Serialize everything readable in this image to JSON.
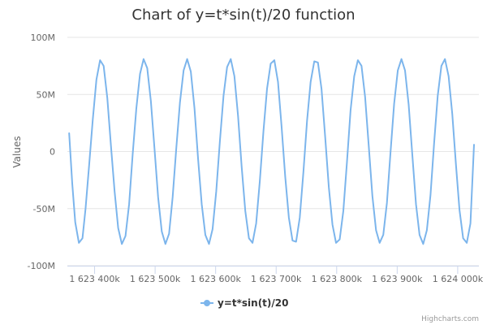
{
  "chart_data": {
    "type": "line",
    "title": "Chart of y=t*sin(t)/20 function",
    "xlabel": "",
    "ylabel": "Values",
    "x_ticks": [
      {
        "value": 1623400000,
        "label": "1 623 400k"
      },
      {
        "value": 1623500000,
        "label": "1 623 500k"
      },
      {
        "value": 1623600000,
        "label": "1 623 600k"
      },
      {
        "value": 1623700000,
        "label": "1 623 700k"
      },
      {
        "value": 1623800000,
        "label": "1 623 800k"
      },
      {
        "value": 1623900000,
        "label": "1 623 900k"
      },
      {
        "value": 1624000000,
        "label": "1 624 000k"
      }
    ],
    "y_ticks": [
      {
        "value": 100000000,
        "label": "100M"
      },
      {
        "value": 50000000,
        "label": "50M"
      },
      {
        "value": 0,
        "label": "0"
      },
      {
        "value": -50000000,
        "label": "-50M"
      },
      {
        "value": -100000000,
        "label": "-100M"
      }
    ],
    "xlim": [
      1623355000,
      1624035000
    ],
    "ylim": [
      -100000000,
      100000000
    ],
    "grid": true,
    "legend_position": "bottom-center",
    "series": [
      {
        "name": "y=t*sin(t)/20",
        "color": "#7cb5ec",
        "x": [
          1623358000,
          1623363000,
          1623368000,
          1623374000,
          1623380000,
          1623385000,
          1623391000,
          1623397000,
          1623403000,
          1623409000,
          1623415000,
          1623421000,
          1623427000,
          1623433000,
          1623439000,
          1623445000,
          1623451000,
          1623457000,
          1623463000,
          1623469000,
          1623475000,
          1623481000,
          1623487000,
          1623493000,
          1623499000,
          1623505000,
          1623511000,
          1623517000,
          1623523000,
          1623529000,
          1623535000,
          1623541000,
          1623547000,
          1623553000,
          1623559000,
          1623565000,
          1623571000,
          1623577000,
          1623583000,
          1623589000,
          1623595000,
          1623601000,
          1623607000,
          1623613000,
          1623619000,
          1623625000,
          1623631000,
          1623637000,
          1623643000,
          1623649000,
          1623655000,
          1623661000,
          1623667000,
          1623673000,
          1623679000,
          1623685000,
          1623691000,
          1623697000,
          1623703000,
          1623709000,
          1623715000,
          1623721000,
          1623727000,
          1623733000,
          1623739000,
          1623745000,
          1623751000,
          1623757000,
          1623763000,
          1623769000,
          1623775000,
          1623781000,
          1623787000,
          1623793000,
          1623799000,
          1623805000,
          1623811000,
          1623817000,
          1623823000,
          1623829000,
          1623835000,
          1623841000,
          1623847000,
          1623853000,
          1623859000,
          1623865000,
          1623871000,
          1623877000,
          1623883000,
          1623889000,
          1623895000,
          1623901000,
          1623907000,
          1623913000,
          1623919000,
          1623925000,
          1623931000,
          1623937000,
          1623943000,
          1623949000,
          1623955000,
          1623961000,
          1623967000,
          1623973000,
          1623979000,
          1623985000,
          1623991000,
          1623997000,
          1624003000,
          1624009000,
          1624015000,
          1624021000,
          1624027000
        ],
        "y": [
          16000000,
          -28000000,
          -62000000,
          -80000000,
          -76000000,
          -50000000,
          -12000000,
          28000000,
          63000000,
          80000000,
          75000000,
          47000000,
          5000000,
          -35000000,
          -67000000,
          -81000000,
          -74000000,
          -46000000,
          -2000000,
          38000000,
          68000000,
          81000000,
          73000000,
          44000000,
          2000000,
          -40000000,
          -70000000,
          -81000000,
          -72000000,
          -40000000,
          3000000,
          43000000,
          71000000,
          81000000,
          70000000,
          38000000,
          -6000000,
          -46000000,
          -73000000,
          -81000000,
          -68000000,
          -35000000,
          9000000,
          49000000,
          74000000,
          81000000,
          66000000,
          31000000,
          -13000000,
          -52000000,
          -76000000,
          -80000000,
          -63000000,
          -26000000,
          18000000,
          55000000,
          77000000,
          80000000,
          61000000,
          22000000,
          -22000000,
          -58000000,
          -78000000,
          -79000000,
          -58000000,
          -18000000,
          27000000,
          61000000,
          79000000,
          78000000,
          55000000,
          13000000,
          -31000000,
          -64000000,
          -80000000,
          -77000000,
          -52000000,
          -9000000,
          36000000,
          66000000,
          80000000,
          75000000,
          48000000,
          5000000,
          -39000000,
          -69000000,
          -80000000,
          -73000000,
          -45000000,
          -1000000,
          42000000,
          71000000,
          81000000,
          71000000,
          41000000,
          -3000000,
          -46000000,
          -73000000,
          -81000000,
          -69000000,
          -38000000,
          7000000,
          49000000,
          75000000,
          81000000,
          66000000,
          33000000,
          -11000000,
          -51000000,
          -76000000,
          -80000000,
          -63000000,
          6000000
        ]
      }
    ]
  },
  "credits": "Highcharts.com"
}
